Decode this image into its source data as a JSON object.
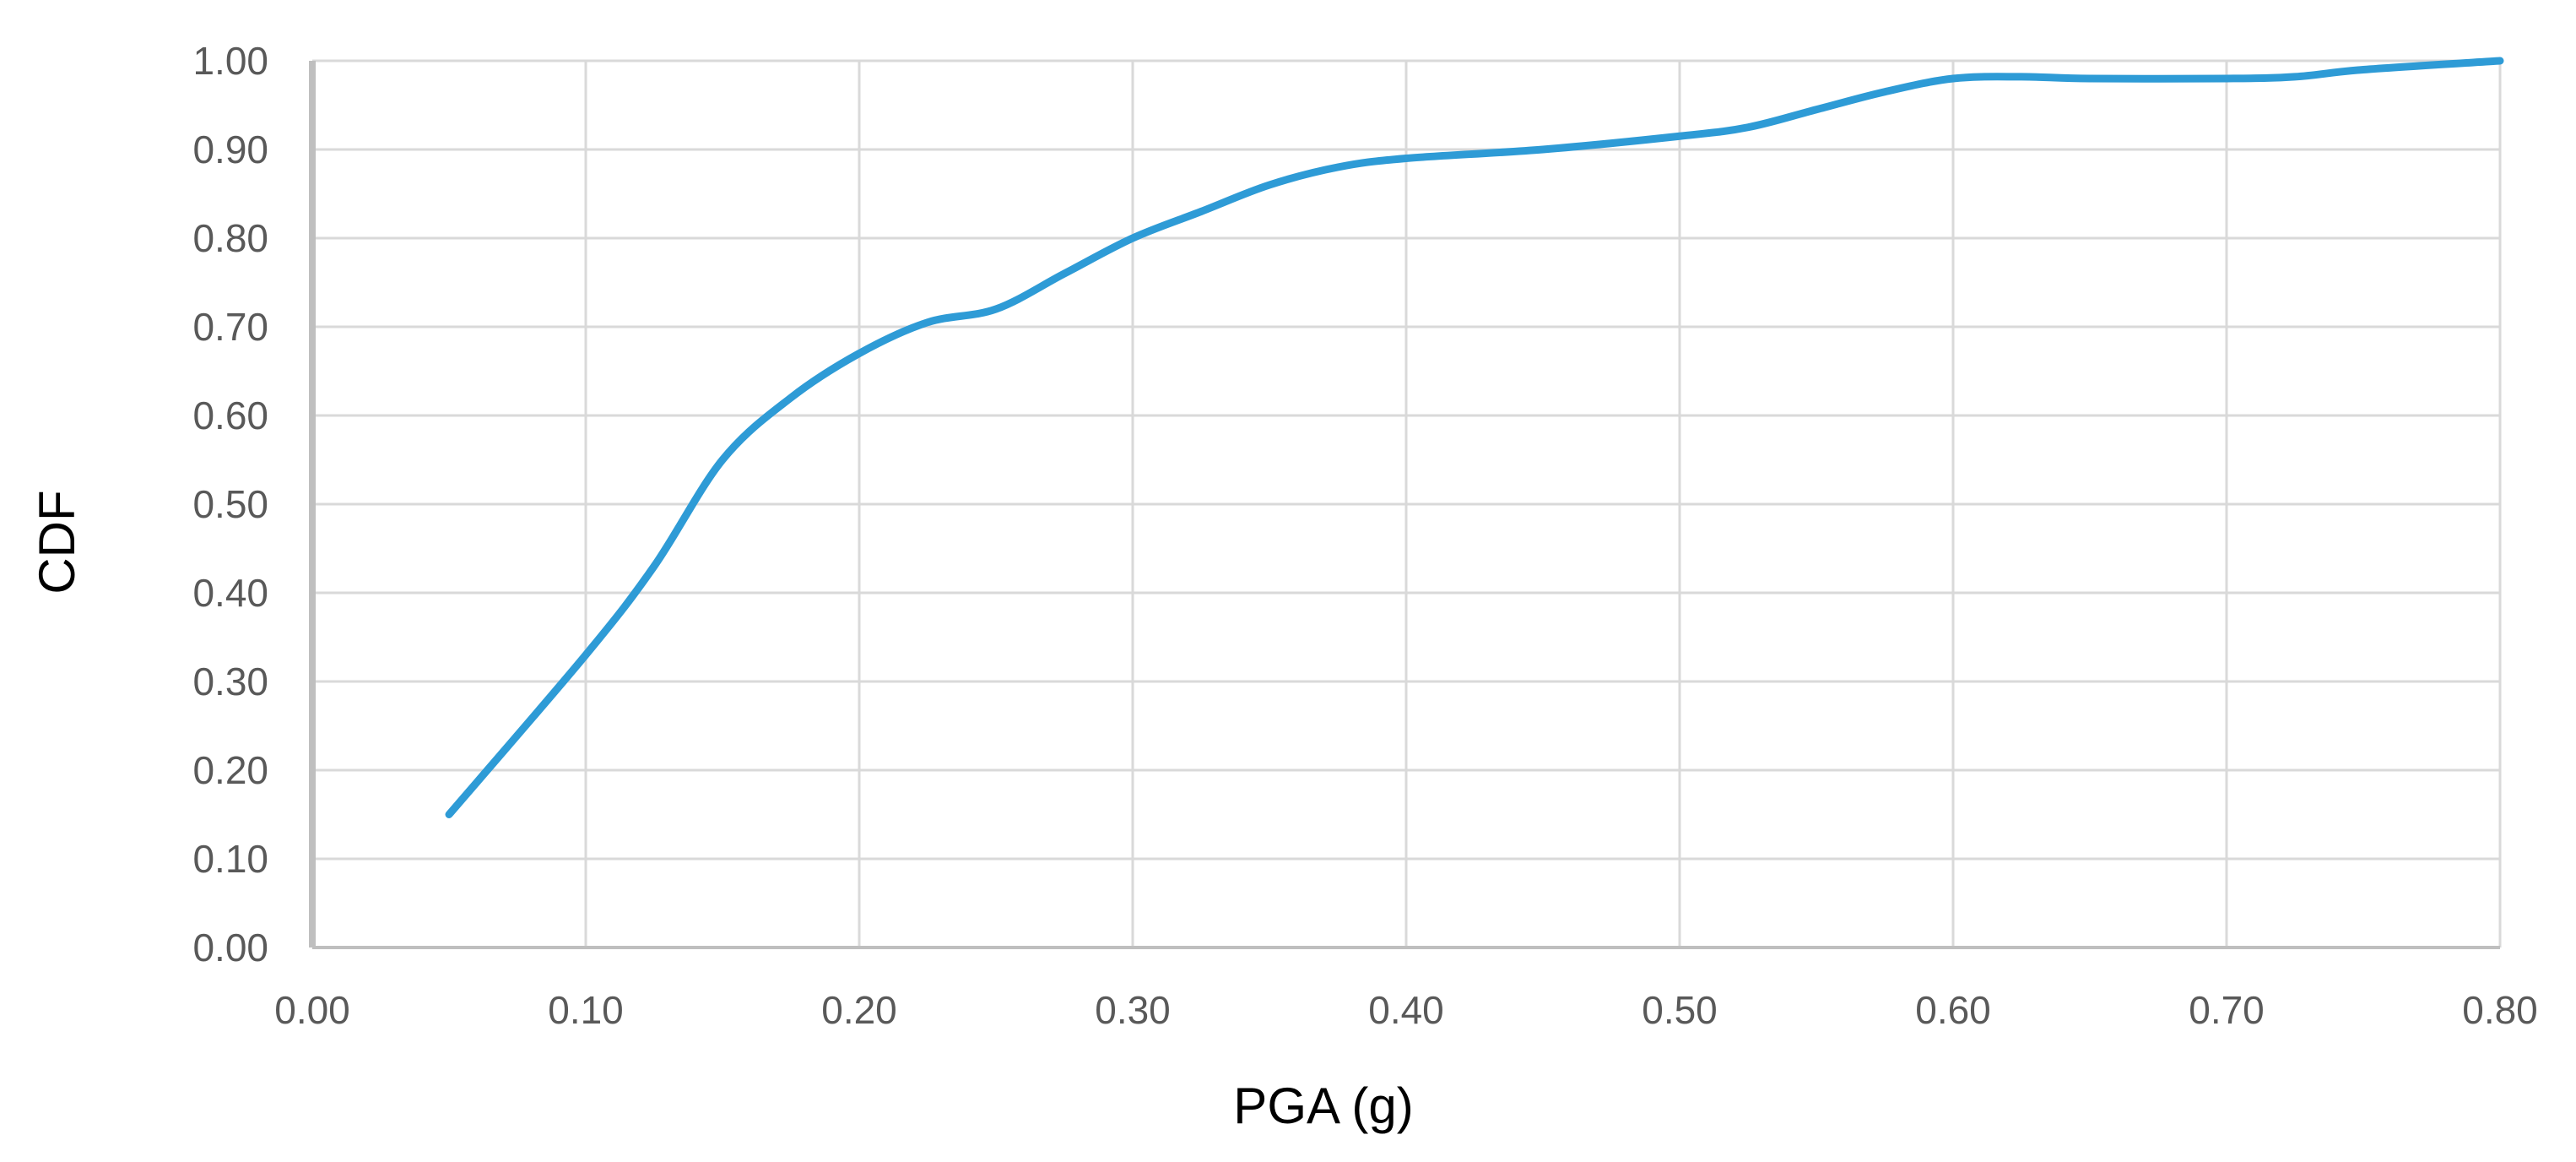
{
  "chart_data": {
    "type": "line",
    "title": "",
    "xlabel": "PGA (g)",
    "ylabel": "CDF",
    "xlim": [
      0,
      0.8
    ],
    "ylim": [
      0,
      1
    ],
    "x_ticks": [
      "0.00",
      "0.10",
      "0.20",
      "0.30",
      "0.40",
      "0.50",
      "0.60",
      "0.70",
      "0.80"
    ],
    "y_ticks": [
      "0.00",
      "0.10",
      "0.20",
      "0.30",
      "0.40",
      "0.50",
      "0.60",
      "0.70",
      "0.80",
      "0.90",
      "1.00"
    ],
    "grid": true,
    "legend": "none",
    "series": [
      {
        "color": "#2E9BD6",
        "points": [
          [
            0.05,
            0.15
          ],
          [
            0.1,
            0.33
          ],
          [
            0.125,
            0.43
          ],
          [
            0.15,
            0.55
          ],
          [
            0.175,
            0.62
          ],
          [
            0.2,
            0.67
          ],
          [
            0.225,
            0.705
          ],
          [
            0.25,
            0.72
          ],
          [
            0.275,
            0.76
          ],
          [
            0.3,
            0.8
          ],
          [
            0.325,
            0.83
          ],
          [
            0.35,
            0.86
          ],
          [
            0.375,
            0.88
          ],
          [
            0.4,
            0.89
          ],
          [
            0.45,
            0.9
          ],
          [
            0.5,
            0.915
          ],
          [
            0.525,
            0.925
          ],
          [
            0.55,
            0.945
          ],
          [
            0.575,
            0.965
          ],
          [
            0.6,
            0.98
          ],
          [
            0.625,
            0.982
          ],
          [
            0.65,
            0.98
          ],
          [
            0.7,
            0.98
          ],
          [
            0.725,
            0.982
          ],
          [
            0.75,
            0.99
          ],
          [
            0.8,
            1.0
          ]
        ]
      }
    ],
    "colors": {
      "line": "#2E9BD6",
      "grid": "#D9D9D9",
      "axis": "#BFBFBF",
      "tick_text": "#595959",
      "title_text": "#000000"
    }
  }
}
